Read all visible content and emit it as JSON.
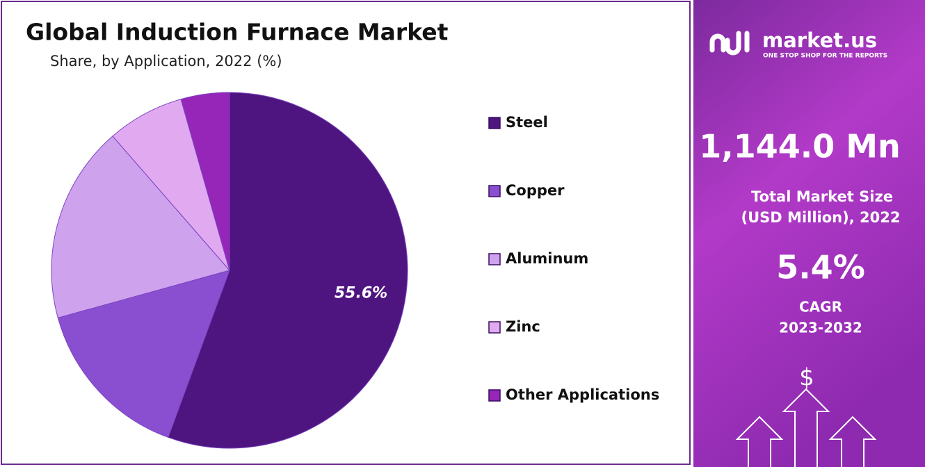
{
  "chart_data": {
    "type": "pie",
    "title": "Global Induction Furnace Market",
    "subtitle": "Share, by Application, 2022 (%)",
    "categories": [
      "Steel",
      "Copper",
      "Aluminum",
      "Zinc",
      "Other Applications"
    ],
    "values": [
      55.6,
      15.1,
      17.9,
      7.0,
      4.4
    ],
    "value_labels": [
      "55.6%",
      null,
      null,
      null,
      null
    ],
    "colors": [
      "#4e1580",
      "#8a4fd0",
      "#cfa2ee",
      "#e1aaf0",
      "#9526b8"
    ],
    "legend": "right"
  },
  "panel": {
    "brand": "market.us",
    "tagline": "ONE STOP SHOP FOR THE REPORTS",
    "market_size": "1,144.0 Mn",
    "market_size_label": [
      "Total Market Size",
      "(USD Million), 2022"
    ],
    "cagr": "5.4%",
    "cagr_label": [
      "CAGR",
      "2023-2032"
    ]
  }
}
